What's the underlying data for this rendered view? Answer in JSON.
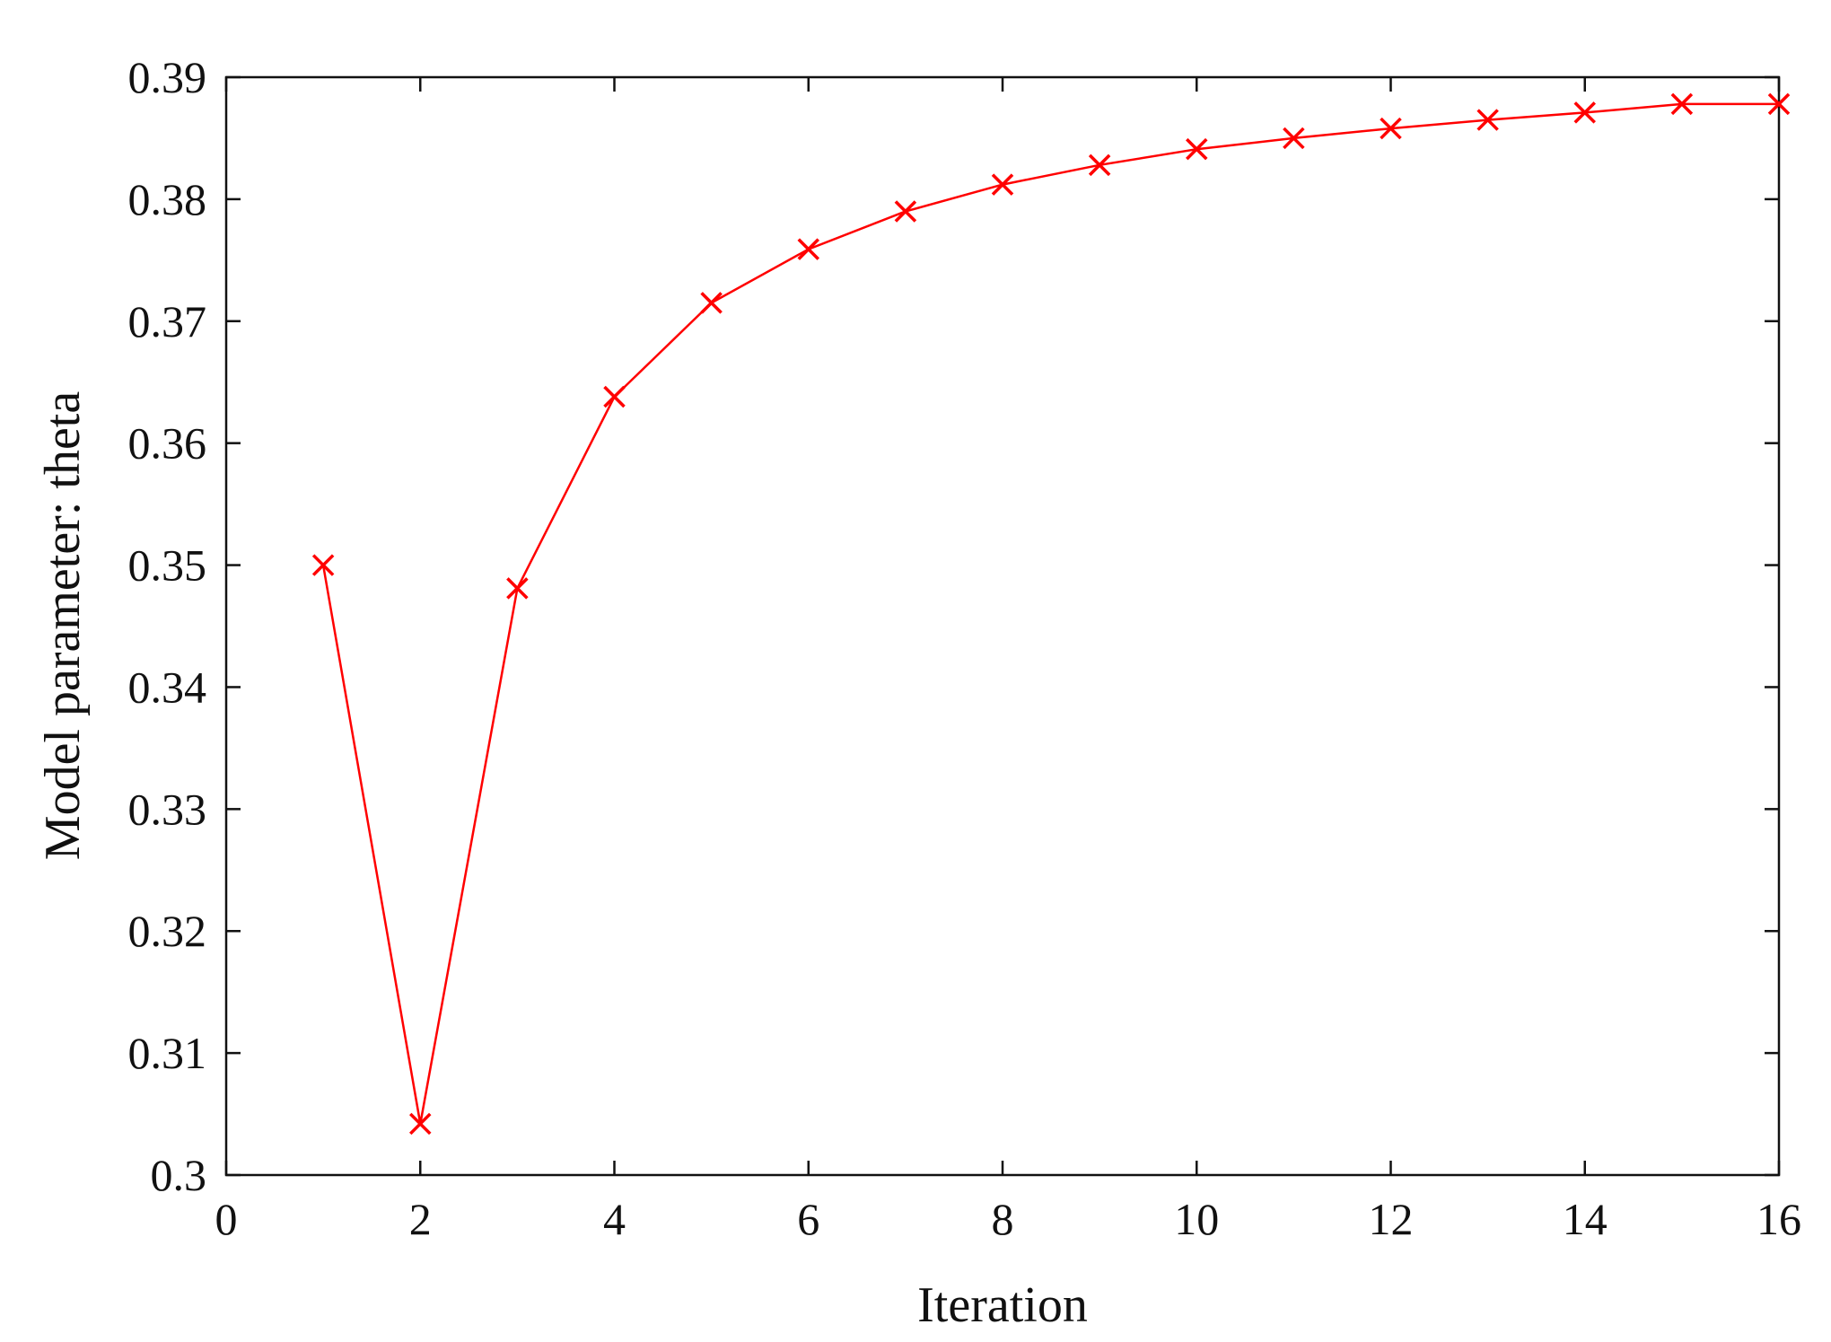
{
  "chart_data": {
    "type": "line",
    "title": "",
    "xlabel": "Iteration",
    "ylabel": "Model parameter: theta",
    "xlim": [
      0,
      16
    ],
    "ylim": [
      0.3,
      0.39
    ],
    "x_ticks": [
      0,
      2,
      4,
      6,
      8,
      10,
      12,
      14,
      16
    ],
    "y_ticks": [
      0.3,
      0.31,
      0.32,
      0.33,
      0.34,
      0.35,
      0.36,
      0.37,
      0.38,
      0.39
    ],
    "x_tick_labels": [
      "0",
      "2",
      "4",
      "6",
      "8",
      "10",
      "12",
      "14",
      "16"
    ],
    "y_tick_labels": [
      "0.3",
      "0.31",
      "0.32",
      "0.33",
      "0.34",
      "0.35",
      "0.36",
      "0.37",
      "0.38",
      "0.39"
    ],
    "grid": false,
    "series": [
      {
        "color": "#ff0000",
        "marker": "x",
        "x": [
          1,
          2,
          3,
          4,
          5,
          6,
          7,
          8,
          9,
          10,
          11,
          12,
          13,
          14,
          15,
          16
        ],
        "y": [
          0.35,
          0.3042,
          0.3481,
          0.3638,
          0.3715,
          0.3759,
          0.379,
          0.3812,
          0.3828,
          0.3841,
          0.385,
          0.3858,
          0.3865,
          0.3871,
          0.3878,
          0.3878
        ]
      }
    ]
  }
}
